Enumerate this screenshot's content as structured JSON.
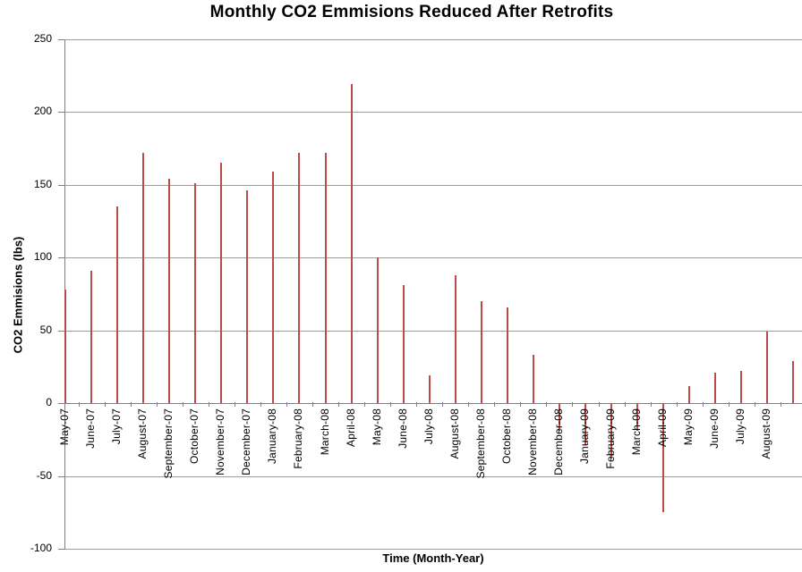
{
  "chart_data": {
    "type": "bar",
    "title": "Monthly CO2 Emmisions Reduced After Retrofits",
    "xlabel": "Time (Month-Year)",
    "ylabel": "CO2 Emmisions (lbs)",
    "ylim": [
      -100,
      250
    ],
    "yticks": [
      250,
      200,
      150,
      100,
      50,
      0,
      -50,
      -100
    ],
    "grid": true,
    "legend": false,
    "bar_color": "#BE4B48",
    "axis_color": "#808080",
    "gridline_color": "#9C9C9C",
    "categories": [
      "May-07",
      "June-07",
      "July-07",
      "August-07",
      "September-07",
      "October-07",
      "November-07",
      "December-07",
      "January-08",
      "February-08",
      "March-08",
      "April-08",
      "May-08",
      "June-08",
      "July-08",
      "August-08",
      "September-08",
      "October-08",
      "November-08",
      "December-08",
      "January-09",
      "February-09",
      "March-09",
      "April-09",
      "May-09",
      "June-09",
      "July-09",
      "August-09",
      ""
    ],
    "values": [
      78,
      91,
      135,
      172,
      154,
      151,
      165,
      146,
      159,
      172,
      172,
      219,
      100,
      81,
      19,
      88,
      70,
      66,
      33,
      -19,
      -29,
      -38,
      -19,
      -75,
      12,
      21,
      22,
      49,
      29
    ]
  }
}
